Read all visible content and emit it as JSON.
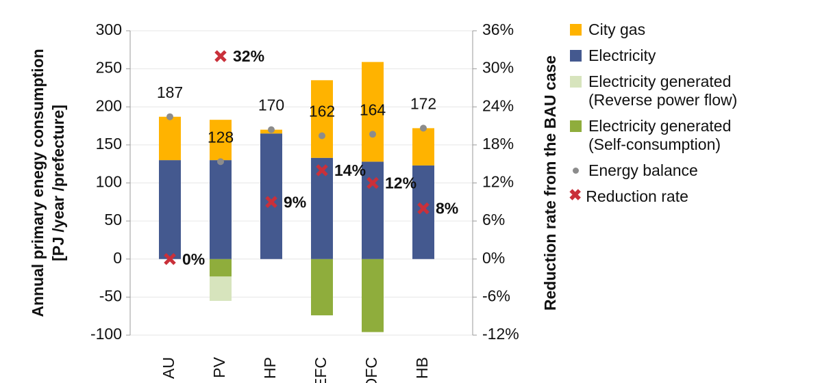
{
  "chart_data": {
    "type": "bar",
    "stacked": true,
    "categories": [
      "AU",
      "PV",
      "HP",
      "EFC",
      "OFC",
      "HB"
    ],
    "ylabel": "Annual primary enegy consumption\n[PJ /year /prefecture]",
    "y2label": "Reduction rate from the BAU case",
    "ylim": [
      -100,
      300
    ],
    "yticks": [
      -100,
      -50,
      0,
      50,
      100,
      150,
      200,
      250,
      300
    ],
    "y2lim": [
      -12,
      36
    ],
    "y2ticks": [
      {
        "value": -12,
        "label": "-12%"
      },
      {
        "value": -6,
        "label": "-6%"
      },
      {
        "value": 0,
        "label": "0%"
      },
      {
        "value": 6,
        "label": "6%"
      },
      {
        "value": 12,
        "label": "12%"
      },
      {
        "value": 18,
        "label": "18%"
      },
      {
        "value": 24,
        "label": "24%"
      },
      {
        "value": 30,
        "label": "30%"
      },
      {
        "value": 36,
        "label": "36%"
      }
    ],
    "grid": true,
    "legend": "right",
    "series": [
      {
        "name": "City gas",
        "type": "bar",
        "color": "#ffb300",
        "values": [
          57,
          53,
          5,
          102,
          131,
          49
        ]
      },
      {
        "name": "Electricity",
        "type": "bar",
        "color": "#44598f",
        "values": [
          130,
          130,
          165,
          133,
          128,
          123
        ]
      },
      {
        "name": "Electricity generated (Reverse power flow)",
        "type": "bar",
        "color": "#d7e4bd",
        "values": [
          0,
          -32,
          0,
          0,
          0,
          0
        ]
      },
      {
        "name": "Electricity generated (Self-consumption)",
        "type": "bar",
        "color": "#8fad3c",
        "values": [
          0,
          -23,
          0,
          -74,
          -96,
          0
        ]
      },
      {
        "name": "Energy balance",
        "type": "dot",
        "color": "#8c8c8c",
        "values": [
          187,
          128,
          170,
          162,
          164,
          172
        ],
        "show_labels": true
      },
      {
        "name": "Reduction rate",
        "type": "cross",
        "axis": "y2",
        "color": "#c9303a",
        "values": [
          0,
          32,
          9,
          14,
          12,
          8
        ],
        "value_labels": [
          "0%",
          "32%",
          "9%",
          "14%",
          "12%",
          "8%"
        ]
      }
    ]
  }
}
